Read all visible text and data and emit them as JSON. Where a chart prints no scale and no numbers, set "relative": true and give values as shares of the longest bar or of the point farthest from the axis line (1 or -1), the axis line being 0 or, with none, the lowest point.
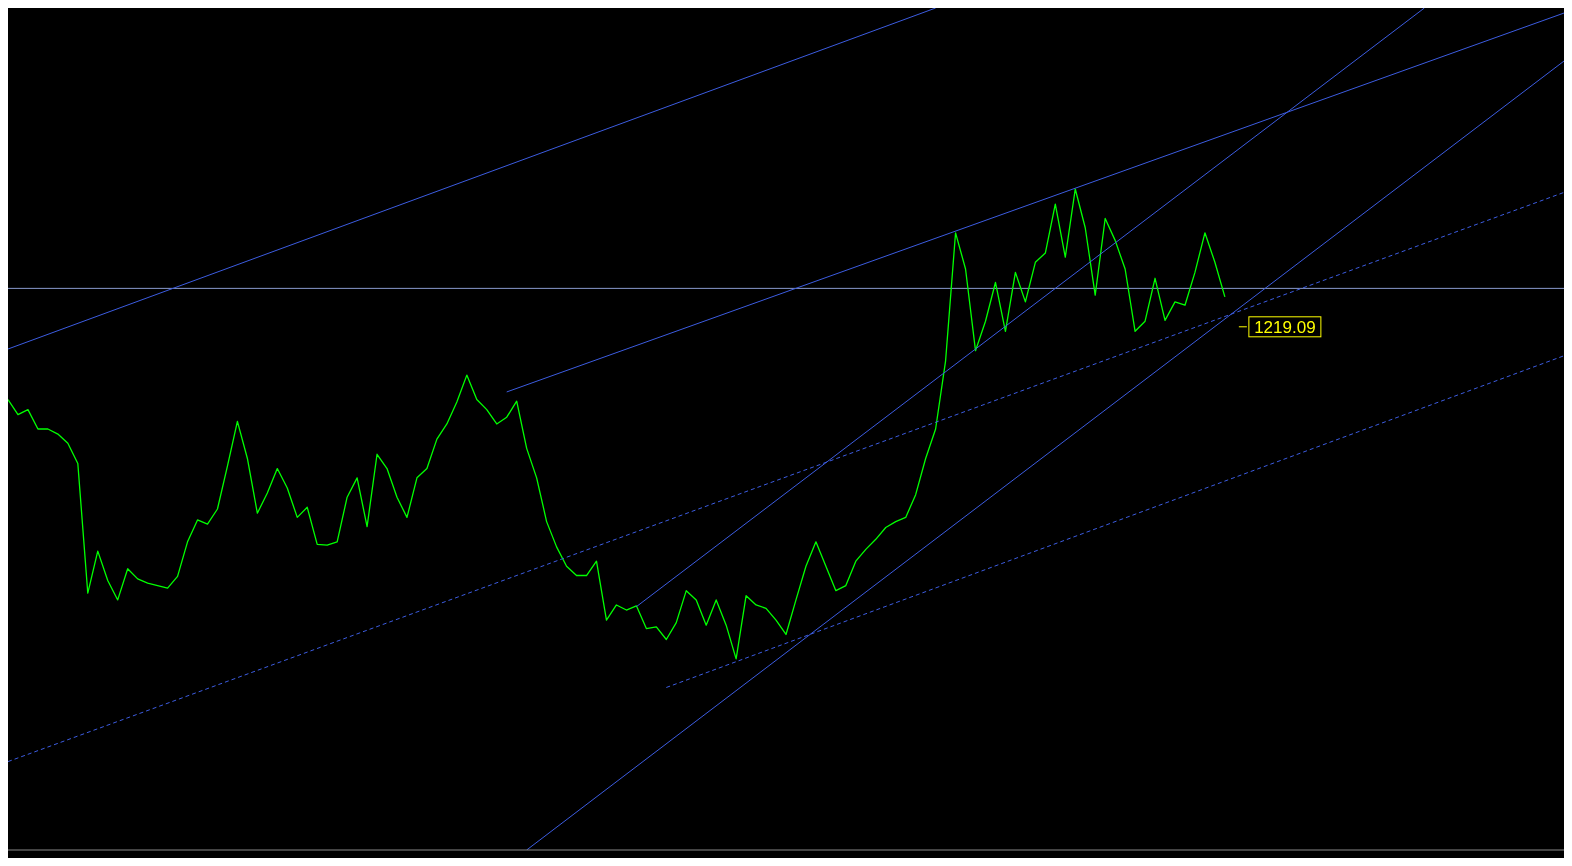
{
  "chart_data": {
    "type": "line",
    "relative": true,
    "grid": false,
    "legend": false,
    "marker": "none",
    "categories": [
      null,
      null,
      null,
      null,
      null,
      null,
      null,
      null,
      null,
      null,
      null,
      null,
      null,
      null,
      null,
      null,
      null,
      null,
      null,
      null,
      null,
      null,
      null,
      null,
      null,
      null,
      null,
      null,
      null,
      null,
      null,
      null,
      null,
      null,
      null,
      null,
      null,
      null,
      null,
      null,
      null,
      null,
      null,
      null,
      null,
      null,
      null,
      null,
      null,
      null,
      null,
      null,
      null,
      null,
      null,
      null,
      null,
      null,
      null,
      null,
      null,
      null,
      null,
      null,
      null,
      null,
      null,
      null,
      null,
      null,
      null,
      null,
      null,
      null,
      null,
      null,
      null,
      null,
      null,
      null,
      null,
      null,
      null,
      null,
      null,
      null,
      null,
      null,
      null,
      null,
      null,
      null,
      null,
      null,
      null,
      null,
      null,
      null,
      null,
      null,
      null,
      null,
      null,
      null,
      null,
      null,
      null,
      null,
      null,
      null,
      null,
      null,
      null,
      null,
      null,
      null,
      null,
      null,
      null,
      null,
      null,
      null,
      null,
      null,
      null,
      null,
      null,
      null,
      null,
      null,
      null,
      null,
      null,
      null,
      null,
      null,
      null,
      null,
      null,
      null,
      null,
      null,
      null,
      null,
      null,
      null,
      null,
      null,
      null,
      null,
      null,
      null,
      null,
      null,
      null,
      null,
      null
    ],
    "series": [
      {
        "color": "#00ff00",
        "values": [
          0.535,
          0.517,
          0.523,
          0.5,
          0.5,
          0.494,
          0.483,
          0.459,
          0.305,
          0.355,
          0.32,
          0.297,
          0.334,
          0.322,
          0.317,
          0.314,
          0.311,
          0.325,
          0.366,
          0.392,
          0.387,
          0.405,
          0.456,
          0.509,
          0.465,
          0.4,
          0.424,
          0.453,
          0.43,
          0.395,
          0.407,
          0.363,
          0.362,
          0.366,
          0.419,
          0.442,
          0.384,
          0.47,
          0.453,
          0.419,
          0.395,
          0.442,
          0.453,
          0.488,
          0.506,
          0.532,
          0.564,
          0.535,
          0.523,
          0.506,
          0.514,
          0.533,
          0.477,
          0.442,
          0.39,
          0.36,
          0.337,
          0.326,
          0.326,
          0.343,
          0.273,
          0.291,
          0.285,
          0.29,
          0.263,
          0.265,
          0.25,
          0.27,
          0.308,
          0.297,
          0.267,
          0.297,
          0.267,
          0.227,
          0.302,
          0.291,
          0.287,
          0.273,
          0.256,
          0.297,
          0.337,
          0.366,
          0.337,
          0.308,
          0.314,
          0.343,
          0.357,
          0.369,
          0.383,
          0.39,
          0.395,
          0.422,
          0.465,
          0.5,
          0.581,
          0.733,
          0.69,
          0.593,
          0.628,
          0.674,
          0.616,
          0.686,
          0.651,
          0.698,
          0.709,
          0.767,
          0.704,
          0.785,
          0.739,
          0.659,
          0.75,
          0.724,
          0.69,
          0.616,
          0.628,
          0.679,
          0.629,
          0.651,
          0.647,
          0.686,
          0.733,
          0.698,
          0.657,
          null,
          null,
          null,
          null,
          null,
          null,
          null,
          null,
          null,
          null,
          null,
          null,
          null,
          null,
          null,
          null,
          null,
          null,
          null,
          null,
          null,
          null,
          null,
          null,
          null,
          null,
          null,
          null,
          null,
          null,
          null,
          null,
          null,
          null
        ]
      },
      {
        "color": "#3c5ce0",
        "values": [
          0.595,
          null,
          null,
          null,
          null,
          null,
          null,
          null,
          null,
          null,
          null,
          null,
          null,
          null,
          null,
          null,
          null,
          null,
          null,
          null,
          null,
          null,
          null,
          null,
          null,
          null,
          null,
          null,
          null,
          null,
          null,
          null,
          null,
          null,
          null,
          null,
          null,
          null,
          null,
          null,
          null,
          null,
          null,
          null,
          null,
          null,
          null,
          null,
          null,
          null,
          null,
          null,
          null,
          null,
          null,
          null,
          null,
          null,
          null,
          null,
          null,
          null,
          null,
          null,
          null,
          null,
          null,
          null,
          null,
          null,
          null,
          null,
          null,
          null,
          null,
          null,
          null,
          null,
          null,
          null,
          null,
          null,
          null,
          null,
          null,
          null,
          null,
          null,
          null,
          null,
          null,
          null,
          null,
          1,
          null,
          null,
          null,
          null,
          null,
          null,
          null,
          null,
          null,
          null,
          null,
          null,
          null,
          null,
          null,
          null,
          null,
          null,
          null,
          null,
          null,
          null,
          null,
          null,
          null,
          null,
          null,
          null,
          null,
          null,
          null,
          null,
          null,
          null,
          null,
          null,
          null,
          null,
          null,
          null,
          null,
          null,
          null,
          null,
          null,
          null,
          null,
          null,
          null,
          null,
          null,
          null,
          null,
          null,
          null,
          null,
          null,
          null,
          null,
          null,
          null,
          null,
          null
        ]
      },
      {
        "color": "#3c5ce0",
        "values": [
          null,
          null,
          null,
          null,
          null,
          null,
          null,
          null,
          null,
          null,
          null,
          null,
          null,
          null,
          null,
          null,
          null,
          null,
          null,
          null,
          null,
          null,
          null,
          null,
          null,
          null,
          null,
          null,
          null,
          null,
          null,
          null,
          null,
          null,
          null,
          null,
          null,
          null,
          null,
          null,
          null,
          null,
          null,
          null,
          null,
          null,
          null,
          null,
          null,
          null,
          0.544,
          null,
          null,
          null,
          null,
          null,
          null,
          null,
          null,
          null,
          null,
          null,
          null,
          null,
          null,
          null,
          null,
          null,
          null,
          null,
          null,
          null,
          null,
          null,
          null,
          null,
          null,
          null,
          null,
          null,
          null,
          null,
          null,
          null,
          null,
          null,
          null,
          null,
          null,
          null,
          null,
          null,
          null,
          null,
          null,
          null,
          null,
          null,
          null,
          null,
          null,
          null,
          null,
          null,
          null,
          null,
          null,
          null,
          null,
          null,
          null,
          null,
          null,
          null,
          null,
          null,
          null,
          null,
          null,
          null,
          null,
          null,
          null,
          null,
          null,
          null,
          null,
          null,
          null,
          null,
          null,
          null,
          null,
          null,
          null,
          null,
          null,
          null,
          null,
          null,
          null,
          null,
          null,
          null,
          null,
          null,
          null,
          null,
          null,
          null,
          null,
          null,
          null,
          null,
          null,
          null,
          0.994
        ]
      },
      {
        "color": "#3c5ce0",
        "values": [
          null,
          null,
          null,
          null,
          null,
          null,
          null,
          null,
          null,
          null,
          null,
          null,
          null,
          null,
          null,
          null,
          null,
          null,
          null,
          null,
          null,
          null,
          null,
          null,
          null,
          null,
          null,
          null,
          null,
          null,
          null,
          null,
          null,
          null,
          null,
          null,
          null,
          null,
          null,
          null,
          null,
          null,
          null,
          null,
          null,
          null,
          null,
          null,
          null,
          null,
          null,
          null,
          null,
          null,
          null,
          null,
          null,
          null,
          null,
          null,
          null,
          null,
          null,
          0.289,
          null,
          null,
          null,
          null,
          null,
          null,
          null,
          null,
          null,
          null,
          null,
          null,
          null,
          null,
          null,
          null,
          null,
          null,
          null,
          null,
          null,
          null,
          null,
          null,
          null,
          null,
          null,
          null,
          null,
          null,
          null,
          null,
          null,
          null,
          null,
          null,
          null,
          null,
          null,
          null,
          null,
          null,
          null,
          null,
          null,
          null,
          null,
          null,
          null,
          null,
          null,
          null,
          null,
          null,
          null,
          null,
          null,
          null,
          null,
          null,
          null,
          null,
          null,
          null,
          null,
          null,
          null,
          null,
          null,
          null,
          null,
          null,
          null,
          null,
          null,
          null,
          null,
          null,
          1,
          null,
          null,
          null,
          null,
          null,
          null,
          null,
          null,
          null,
          null,
          null,
          null,
          null,
          null
        ]
      },
      {
        "color": "#3c5ce0",
        "values": [
          null,
          null,
          null,
          null,
          null,
          null,
          null,
          null,
          null,
          null,
          null,
          null,
          null,
          null,
          null,
          null,
          null,
          null,
          null,
          null,
          null,
          null,
          null,
          null,
          null,
          null,
          null,
          null,
          null,
          null,
          null,
          null,
          null,
          null,
          null,
          null,
          null,
          null,
          null,
          null,
          null,
          null,
          null,
          null,
          null,
          null,
          null,
          null,
          null,
          null,
          null,
          null,
          0,
          null,
          null,
          null,
          null,
          null,
          null,
          null,
          null,
          null,
          null,
          null,
          null,
          null,
          null,
          null,
          null,
          null,
          null,
          null,
          null,
          null,
          null,
          null,
          null,
          null,
          null,
          null,
          null,
          null,
          null,
          null,
          null,
          null,
          null,
          null,
          null,
          null,
          null,
          null,
          null,
          null,
          null,
          null,
          null,
          null,
          null,
          null,
          null,
          null,
          null,
          null,
          null,
          null,
          null,
          null,
          null,
          null,
          null,
          null,
          null,
          null,
          null,
          null,
          null,
          null,
          null,
          null,
          null,
          null,
          null,
          null,
          null,
          null,
          null,
          null,
          null,
          null,
          null,
          null,
          null,
          null,
          null,
          null,
          null,
          null,
          null,
          null,
          null,
          null,
          null,
          null,
          null,
          null,
          null,
          null,
          null,
          null,
          null,
          null,
          null,
          null,
          null,
          null,
          0.937
        ]
      },
      {
        "color": "#3c5ce0",
        "line_style": "dashed",
        "values": [
          0.105,
          null,
          null,
          null,
          null,
          null,
          null,
          null,
          null,
          null,
          null,
          null,
          null,
          null,
          null,
          null,
          null,
          null,
          null,
          null,
          null,
          null,
          null,
          null,
          null,
          null,
          null,
          null,
          null,
          null,
          null,
          null,
          null,
          null,
          null,
          null,
          null,
          null,
          null,
          null,
          null,
          null,
          null,
          null,
          null,
          null,
          null,
          null,
          null,
          null,
          null,
          null,
          null,
          null,
          null,
          null,
          null,
          null,
          null,
          null,
          null,
          null,
          null,
          null,
          null,
          null,
          null,
          null,
          null,
          null,
          null,
          null,
          null,
          null,
          null,
          null,
          null,
          null,
          null,
          null,
          null,
          null,
          null,
          null,
          null,
          null,
          null,
          null,
          null,
          null,
          null,
          null,
          null,
          null,
          null,
          null,
          null,
          null,
          null,
          null,
          null,
          null,
          null,
          null,
          null,
          null,
          null,
          null,
          null,
          null,
          null,
          null,
          null,
          null,
          null,
          null,
          null,
          null,
          null,
          null,
          null,
          null,
          null,
          null,
          null,
          null,
          null,
          null,
          null,
          null,
          null,
          null,
          null,
          null,
          null,
          null,
          null,
          null,
          null,
          null,
          null,
          null,
          null,
          null,
          null,
          null,
          null,
          null,
          null,
          null,
          null,
          null,
          null,
          null,
          null,
          null,
          0.781
        ]
      },
      {
        "color": "#3c5ce0",
        "line_style": "dashed",
        "values": [
          null,
          null,
          null,
          null,
          null,
          null,
          null,
          null,
          null,
          null,
          null,
          null,
          null,
          null,
          null,
          null,
          null,
          null,
          null,
          null,
          null,
          null,
          null,
          null,
          null,
          null,
          null,
          null,
          null,
          null,
          null,
          null,
          null,
          null,
          null,
          null,
          null,
          null,
          null,
          null,
          null,
          null,
          null,
          null,
          null,
          null,
          null,
          null,
          null,
          null,
          null,
          null,
          null,
          null,
          null,
          null,
          null,
          null,
          null,
          null,
          null,
          null,
          null,
          null,
          null,
          null,
          0.193,
          null,
          null,
          null,
          null,
          null,
          null,
          null,
          null,
          null,
          null,
          null,
          null,
          null,
          null,
          null,
          null,
          null,
          null,
          null,
          null,
          null,
          null,
          null,
          null,
          null,
          null,
          null,
          null,
          null,
          null,
          null,
          null,
          null,
          null,
          null,
          null,
          null,
          null,
          null,
          null,
          null,
          null,
          null,
          null,
          null,
          null,
          null,
          null,
          null,
          null,
          null,
          null,
          null,
          null,
          null,
          null,
          null,
          null,
          null,
          null,
          null,
          null,
          null,
          null,
          null,
          null,
          null,
          null,
          null,
          null,
          null,
          null,
          null,
          null,
          null,
          null,
          null,
          null,
          null,
          null,
          null,
          null,
          null,
          null,
          null,
          null,
          null,
          null,
          null,
          0.587
        ]
      }
    ],
    "ref_lines": [
      {
        "axis": "y",
        "value": 0.667,
        "color": "#8899cc"
      }
    ],
    "annotations": [
      "1219.09"
    ]
  }
}
